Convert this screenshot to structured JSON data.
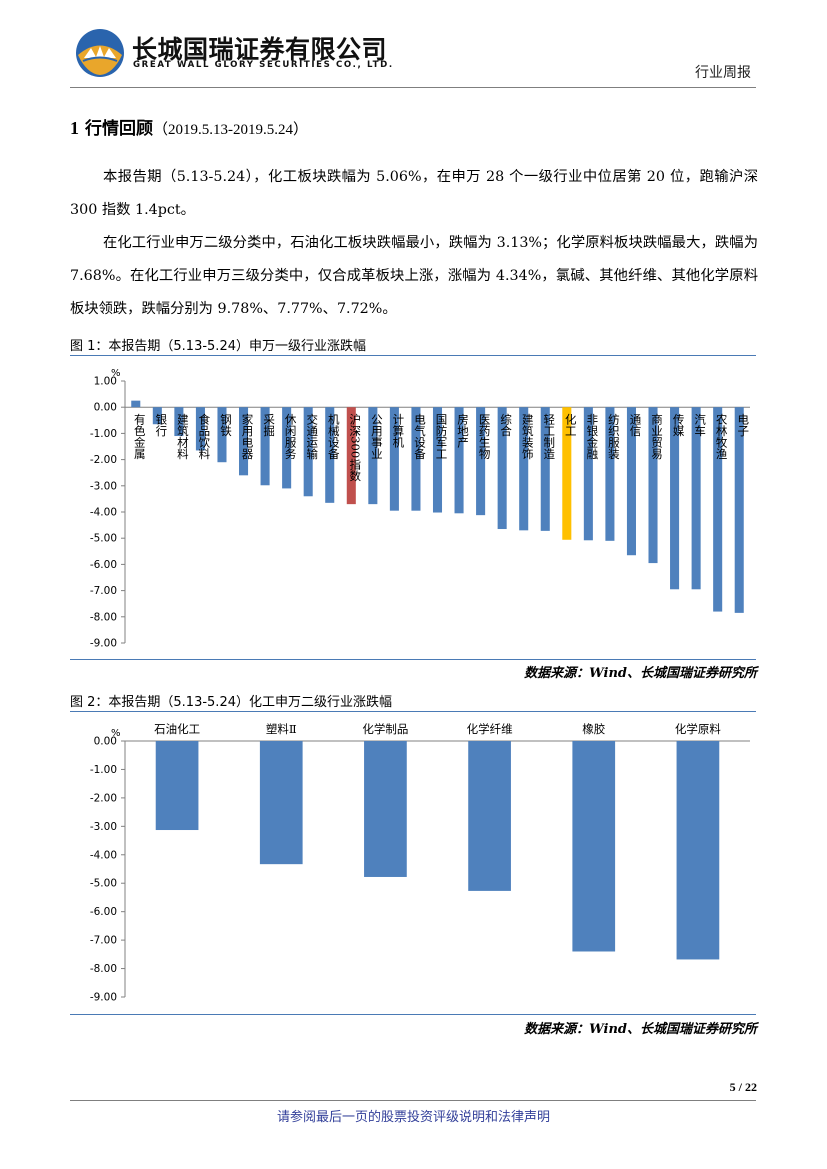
{
  "header": {
    "company_cn": "长城国瑞证券有限公司",
    "company_en": "GREAT WALL GLORY SECURITIES CO., LTD.",
    "report_type": "行业周报",
    "logo_colors": {
      "blue": "#2a64ad",
      "gold": "#e9a62b"
    }
  },
  "section": {
    "number": "1",
    "title": "行情回顾",
    "range": "（2019.5.13-2019.5.24）"
  },
  "paragraphs": [
    "本报告期（5.13-5.24），化工板块跌幅为 5.06%，在申万 28 个一级行业中位居第 20 位，跑输沪深 300 指数 1.4pct。",
    "在化工行业申万二级分类中，石油化工板块跌幅最小，跌幅为 3.13%；化学原料板块跌幅最大，跌幅为 7.68%。在化工行业申万三级分类中，仅合成革板块上涨，涨幅为 4.34%，氯碱、其他纤维、其他化学原料板块领跌，跌幅分别为 9.78%、7.77%、7.72%。"
  ],
  "figures": [
    {
      "caption": "图 1：本报告期（5.13-5.24）申万一级行业涨跌幅",
      "source": "数据来源：Wind、长城国瑞证券研究所"
    },
    {
      "caption": "图 2：本报告期（5.13-5.24）化工申万二级行业涨跌幅",
      "source": "数据来源：Wind、长城国瑞证券研究所"
    }
  ],
  "chart_data": [
    {
      "type": "bar",
      "unit_label": "%",
      "ylim": [
        -9,
        1
      ],
      "yticks": [
        "1.00",
        "0.00",
        "-1.00",
        "-2.00",
        "-3.00",
        "-4.00",
        "-5.00",
        "-6.00",
        "-7.00",
        "-8.00",
        "-9.00"
      ],
      "ytick_values": [
        1,
        0,
        -1,
        -2,
        -3,
        -4,
        -5,
        -6,
        -7,
        -8,
        -9
      ],
      "categories": [
        "有色金属",
        "银行",
        "建筑材料",
        "食品饮料",
        "钢铁",
        "家用电器",
        "采掘",
        "休闲服务",
        "交通运输",
        "机械设备",
        "沪深300指数",
        "公用事业",
        "计算机",
        "电气设备",
        "国防军工",
        "房地产",
        "医药生物",
        "综合",
        "建筑装饰",
        "轻工制造",
        "化工",
        "非银金融",
        "纺织服装",
        "通信",
        "商业贸易",
        "传媒",
        "汽车",
        "农林牧渔",
        "电子"
      ],
      "values": [
        0.25,
        -0.65,
        -1.1,
        -1.65,
        -2.1,
        -2.6,
        -2.98,
        -3.1,
        -3.4,
        -3.65,
        -3.7,
        -3.7,
        -3.95,
        -3.95,
        -4.02,
        -4.05,
        -4.12,
        -4.65,
        -4.7,
        -4.72,
        -5.06,
        -5.08,
        -5.1,
        -5.65,
        -5.95,
        -6.95,
        -6.95,
        -7.8,
        -7.85
      ],
      "colors": {
        "default": "#4f81bd",
        "index": "#c0504d",
        "highlight": "#ffc000"
      },
      "index_category": "沪深300指数",
      "highlight_category": "化工",
      "label_position": "below-zero-line, vertical"
    },
    {
      "type": "bar",
      "unit_label": "%",
      "ylim": [
        -9,
        0
      ],
      "yticks": [
        "0.00",
        "-1.00",
        "-2.00",
        "-3.00",
        "-4.00",
        "-5.00",
        "-6.00",
        "-7.00",
        "-8.00",
        "-9.00"
      ],
      "ytick_values": [
        0,
        -1,
        -2,
        -3,
        -4,
        -5,
        -6,
        -7,
        -8,
        -9
      ],
      "categories": [
        "石油化工",
        "塑料Ⅱ",
        "化学制品",
        "化学纤维",
        "橡胶",
        "化学原料"
      ],
      "values": [
        -3.13,
        -4.33,
        -4.78,
        -5.27,
        -7.4,
        -7.68
      ],
      "colors": {
        "default": "#4f81bd"
      },
      "label_position": "above-zero-line"
    }
  ],
  "footer": {
    "page_number": "5 / 22",
    "disclaimer": "请参阅最后一页的股票投资评级说明和法律声明"
  }
}
